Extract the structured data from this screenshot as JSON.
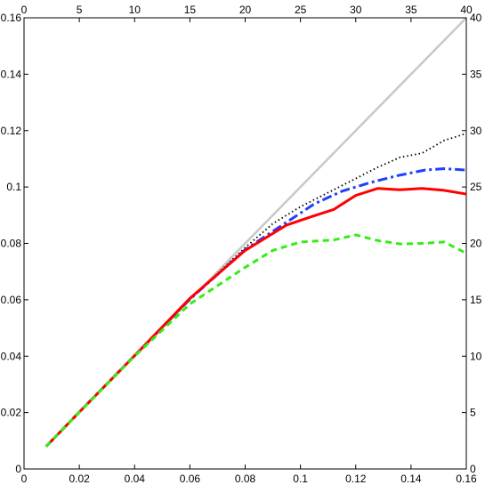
{
  "chart_data": {
    "type": "line",
    "title": "",
    "xlabel": "",
    "ylabel": "",
    "grid": false,
    "legend": "none",
    "xlim": [
      0,
      0.16
    ],
    "ylim": [
      0,
      0.16
    ],
    "x2lim": [
      0,
      40
    ],
    "y2lim": [
      0,
      40
    ],
    "x_ticks": [
      0,
      0.02,
      0.04,
      0.06,
      0.08,
      0.1,
      0.12,
      0.14,
      0.16
    ],
    "y_ticks": [
      0,
      0.02,
      0.04,
      0.06,
      0.08,
      0.1,
      0.12,
      0.14,
      0.16
    ],
    "x2_ticks": [
      0,
      5,
      10,
      15,
      20,
      25,
      30,
      35,
      40
    ],
    "y2_ticks": [
      0,
      5,
      10,
      15,
      20,
      25,
      30,
      35,
      40
    ],
    "x_tick_labels": [
      "0",
      "0.02",
      "0.04",
      "0.06",
      "0.08",
      "0.1",
      "0.12",
      "0.14",
      "0.16"
    ],
    "y_tick_labels": [
      "0",
      "0.02",
      "0.04",
      "0.06",
      "0.08",
      "0.1",
      "0.12",
      "0.14",
      "0.16"
    ],
    "x2_tick_labels": [
      "0",
      "5",
      "10",
      "15",
      "20",
      "25",
      "30",
      "35",
      "40"
    ],
    "y2_tick_labels": [
      "0",
      "5",
      "10",
      "15",
      "20",
      "25",
      "30",
      "35",
      "40"
    ],
    "series": [
      {
        "style": "solid",
        "color": "#c8c8c8",
        "width": 2.5,
        "x": [
          0.008,
          0.16
        ],
        "y": [
          0.008,
          0.16
        ]
      },
      {
        "style": "dotted",
        "color": "#000000",
        "width": 1.8,
        "x": [
          0.008,
          0.02,
          0.04,
          0.06,
          0.08,
          0.09,
          0.1,
          0.11,
          0.12,
          0.128,
          0.136,
          0.144,
          0.152,
          0.16
        ],
        "y": [
          0.008,
          0.0202,
          0.0402,
          0.0602,
          0.0785,
          0.087,
          0.093,
          0.098,
          0.103,
          0.107,
          0.1105,
          0.112,
          0.1165,
          0.119
        ]
      },
      {
        "style": "dashdot",
        "color": "#1f3fff",
        "width": 3,
        "x": [
          0.008,
          0.02,
          0.04,
          0.06,
          0.08,
          0.095,
          0.105,
          0.115,
          0.125,
          0.135,
          0.145,
          0.152,
          0.16
        ],
        "y": [
          0.008,
          0.0202,
          0.0402,
          0.0602,
          0.0778,
          0.0875,
          0.094,
          0.0985,
          0.1015,
          0.104,
          0.106,
          0.1065,
          0.106
        ]
      },
      {
        "style": "solid",
        "color": "#ff0000",
        "width": 3,
        "x": [
          0.008,
          0.02,
          0.04,
          0.06,
          0.08,
          0.095,
          0.104,
          0.112,
          0.12,
          0.128,
          0.136,
          0.144,
          0.152,
          0.16
        ],
        "y": [
          0.008,
          0.0202,
          0.0402,
          0.0605,
          0.0775,
          0.0865,
          0.0895,
          0.092,
          0.097,
          0.0995,
          0.099,
          0.0995,
          0.0988,
          0.0975
        ]
      },
      {
        "style": "dashed",
        "color": "#33ee11",
        "width": 3,
        "x": [
          0.008,
          0.02,
          0.04,
          0.06,
          0.08,
          0.09,
          0.1,
          0.112,
          0.12,
          0.128,
          0.136,
          0.144,
          0.152,
          0.16
        ],
        "y": [
          0.008,
          0.0202,
          0.04,
          0.0585,
          0.0715,
          0.0775,
          0.0805,
          0.0812,
          0.083,
          0.081,
          0.0798,
          0.08,
          0.0805,
          0.0765
        ]
      }
    ]
  }
}
